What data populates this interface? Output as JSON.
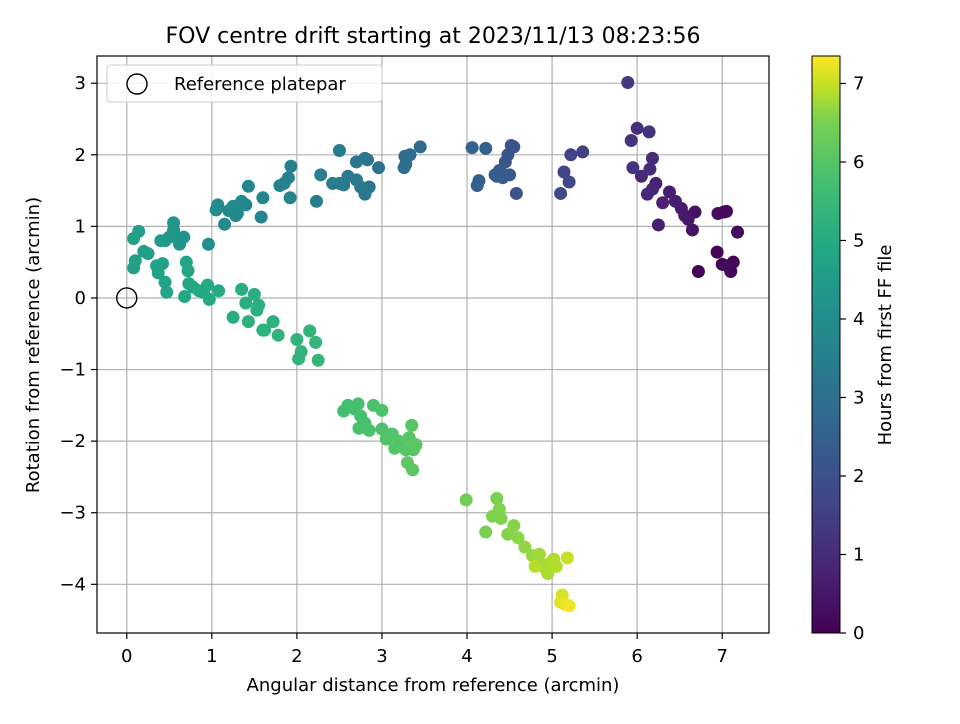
{
  "chart_data": {
    "type": "scatter",
    "title": "FOV centre drift starting at 2023/11/13 08:23:56",
    "xlabel": "Angular distance from reference (arcmin)",
    "ylabel": "Rotation from reference (arcmin)",
    "xlim": [
      -0.35,
      7.55
    ],
    "ylim": [
      -4.68,
      3.38
    ],
    "xticks": [
      0,
      1,
      2,
      3,
      4,
      5,
      6,
      7
    ],
    "yticks": [
      3,
      2,
      1,
      0,
      -1,
      -2,
      -3,
      -4
    ],
    "grid": true,
    "legend": {
      "placement": "top-left",
      "entries": [
        "Reference platepar"
      ]
    },
    "reference_point": {
      "x": 0,
      "y": 0,
      "label": "Reference platepar"
    },
    "colorbar": {
      "label": "Hours from first FF file",
      "colormap": "viridis",
      "range": [
        0,
        7.35
      ],
      "ticks": [
        0,
        1,
        2,
        3,
        4,
        5,
        6,
        7
      ]
    },
    "points": [
      [
        6.72,
        0.37,
        0.05
      ],
      [
        6.94,
        0.64,
        0.08
      ],
      [
        7.0,
        0.47,
        0.12
      ],
      [
        7.1,
        0.37,
        0.1
      ],
      [
        7.13,
        0.5,
        0.15
      ],
      [
        7.06,
        0.45,
        0.18
      ],
      [
        7.18,
        0.92,
        0.22
      ],
      [
        6.95,
        1.18,
        0.28
      ],
      [
        7.02,
        1.2,
        0.25
      ],
      [
        7.05,
        1.21,
        0.2
      ],
      [
        6.68,
        1.2,
        0.38
      ],
      [
        6.65,
        0.95,
        0.42
      ],
      [
        6.6,
        1.1,
        0.5
      ],
      [
        6.56,
        1.15,
        0.55
      ],
      [
        6.52,
        1.25,
        0.6
      ],
      [
        6.45,
        1.35,
        0.65
      ],
      [
        6.38,
        1.48,
        0.7
      ],
      [
        6.3,
        1.33,
        0.75
      ],
      [
        6.22,
        1.6,
        0.78
      ],
      [
        6.18,
        1.52,
        0.85
      ],
      [
        6.12,
        1.45,
        0.9
      ],
      [
        6.25,
        1.02,
        0.72
      ],
      [
        6.05,
        1.7,
        0.95
      ],
      [
        6.15,
        1.8,
        1.0
      ],
      [
        6.18,
        1.95,
        1.05
      ],
      [
        6.0,
        2.37,
        1.1
      ],
      [
        6.14,
        2.32,
        1.15
      ],
      [
        5.93,
        2.2,
        1.2
      ],
      [
        5.95,
        1.82,
        1.25
      ],
      [
        5.89,
        3.01,
        1.35
      ],
      [
        5.36,
        2.04,
        1.55
      ],
      [
        5.22,
        2.0,
        1.6
      ],
      [
        5.14,
        1.76,
        1.7
      ],
      [
        5.2,
        1.62,
        1.75
      ],
      [
        5.1,
        1.46,
        1.8
      ],
      [
        4.58,
        1.46,
        2.05
      ],
      [
        4.55,
        2.11,
        2.1
      ],
      [
        4.52,
        2.13,
        2.12
      ],
      [
        4.48,
        2.0,
        2.15
      ],
      [
        4.45,
        1.9,
        2.2
      ],
      [
        4.5,
        1.72,
        2.25
      ],
      [
        4.42,
        1.68,
        2.28
      ],
      [
        4.38,
        1.78,
        2.3
      ],
      [
        4.4,
        1.75,
        2.32
      ],
      [
        4.35,
        1.7,
        2.35
      ],
      [
        4.33,
        1.72,
        2.38
      ],
      [
        4.12,
        1.57,
        2.45
      ],
      [
        4.14,
        1.64,
        2.48
      ],
      [
        4.22,
        2.09,
        2.55
      ],
      [
        4.06,
        2.1,
        2.6
      ],
      [
        3.45,
        2.11,
        2.8
      ],
      [
        3.33,
        2.0,
        2.85
      ],
      [
        3.27,
        1.98,
        2.88
      ],
      [
        3.28,
        1.87,
        2.9
      ],
      [
        3.26,
        1.82,
        2.95
      ],
      [
        2.96,
        1.82,
        3.05
      ],
      [
        2.83,
        1.93,
        3.1
      ],
      [
        2.8,
        1.95,
        3.12
      ],
      [
        2.7,
        1.9,
        3.15
      ],
      [
        2.85,
        1.55,
        3.2
      ],
      [
        2.8,
        1.45,
        3.22
      ],
      [
        2.75,
        1.55,
        3.25
      ],
      [
        2.7,
        1.65,
        3.28
      ],
      [
        2.6,
        1.7,
        3.3
      ],
      [
        2.55,
        1.58,
        3.32
      ],
      [
        2.5,
        1.6,
        3.35
      ],
      [
        2.42,
        1.6,
        3.38
      ],
      [
        2.5,
        2.06,
        3.4
      ],
      [
        2.28,
        1.72,
        3.45
      ],
      [
        2.23,
        1.35,
        3.5
      ],
      [
        1.93,
        1.84,
        3.55
      ],
      [
        1.9,
        1.68,
        3.58
      ],
      [
        1.85,
        1.6,
        3.6
      ],
      [
        1.8,
        1.57,
        3.62
      ],
      [
        1.92,
        1.4,
        3.65
      ],
      [
        1.6,
        1.4,
        3.7
      ],
      [
        1.58,
        1.13,
        3.72
      ],
      [
        1.43,
        1.56,
        3.75
      ],
      [
        1.4,
        1.3,
        3.78
      ],
      [
        1.35,
        1.35,
        3.8
      ],
      [
        1.3,
        1.18,
        3.82
      ],
      [
        1.28,
        1.15,
        3.85
      ],
      [
        1.25,
        1.28,
        3.88
      ],
      [
        1.2,
        1.22,
        3.9
      ],
      [
        1.15,
        1.03,
        3.92
      ],
      [
        1.07,
        1.3,
        3.95
      ],
      [
        1.05,
        1.23,
        3.98
      ],
      [
        0.96,
        0.75,
        4.05
      ],
      [
        0.67,
        0.85,
        4.2
      ],
      [
        0.62,
        0.75,
        4.25
      ],
      [
        0.6,
        0.83,
        4.28
      ],
      [
        0.55,
        0.95,
        4.3
      ],
      [
        0.55,
        1.05,
        4.32
      ],
      [
        0.5,
        0.85,
        4.35
      ],
      [
        0.45,
        0.8,
        4.4
      ],
      [
        0.4,
        0.8,
        4.42
      ],
      [
        0.2,
        0.65,
        4.55
      ],
      [
        0.25,
        0.62,
        4.58
      ],
      [
        0.14,
        0.93,
        4.6
      ],
      [
        0.08,
        0.83,
        4.62
      ],
      [
        0.1,
        0.52,
        4.65
      ],
      [
        0.08,
        0.42,
        4.68
      ],
      [
        0.35,
        0.45,
        4.7
      ],
      [
        0.37,
        0.35,
        4.72
      ],
      [
        0.42,
        0.48,
        4.74
      ],
      [
        0.45,
        0.22,
        4.76
      ],
      [
        0.47,
        0.08,
        4.78
      ],
      [
        0.7,
        0.5,
        4.8
      ],
      [
        0.72,
        0.38,
        4.82
      ],
      [
        0.73,
        0.2,
        4.84
      ],
      [
        0.68,
        0.02,
        4.86
      ],
      [
        0.78,
        0.15,
        4.88
      ],
      [
        0.85,
        0.1,
        4.9
      ],
      [
        0.9,
        0.08,
        4.92
      ],
      [
        0.95,
        0.18,
        4.94
      ],
      [
        0.97,
        -0.02,
        4.96
      ],
      [
        1.08,
        0.1,
        4.98
      ],
      [
        1.25,
        -0.27,
        5.05
      ],
      [
        1.35,
        0.12,
        5.08
      ],
      [
        1.4,
        -0.07,
        5.1
      ],
      [
        1.5,
        0.05,
        5.12
      ],
      [
        1.55,
        -0.1,
        5.14
      ],
      [
        1.53,
        -0.17,
        5.16
      ],
      [
        1.43,
        -0.33,
        5.18
      ],
      [
        1.6,
        -0.45,
        5.2
      ],
      [
        1.62,
        -0.45,
        5.22
      ],
      [
        1.72,
        -0.33,
        5.24
      ],
      [
        1.78,
        -0.52,
        5.26
      ],
      [
        2.0,
        -0.58,
        5.3
      ],
      [
        2.02,
        -0.85,
        5.32
      ],
      [
        2.05,
        -0.75,
        5.34
      ],
      [
        2.15,
        -0.46,
        5.36
      ],
      [
        2.22,
        -0.62,
        5.38
      ],
      [
        2.25,
        -0.87,
        5.4
      ],
      [
        2.55,
        -1.58,
        5.7
      ],
      [
        2.6,
        -1.5,
        5.72
      ],
      [
        2.68,
        -1.55,
        5.74
      ],
      [
        2.72,
        -1.48,
        5.76
      ],
      [
        2.75,
        -1.65,
        5.78
      ],
      [
        2.8,
        -1.75,
        5.8
      ],
      [
        2.73,
        -1.82,
        5.82
      ],
      [
        2.85,
        -1.85,
        5.84
      ],
      [
        2.9,
        -1.5,
        5.86
      ],
      [
        3.0,
        -1.57,
        5.88
      ],
      [
        3.0,
        -1.83,
        5.9
      ],
      [
        3.05,
        -1.97,
        5.92
      ],
      [
        3.12,
        -1.9,
        5.94
      ],
      [
        3.15,
        -2.1,
        5.96
      ],
      [
        3.2,
        -2.0,
        5.98
      ],
      [
        3.28,
        -2.12,
        6.0
      ],
      [
        3.32,
        -1.95,
        6.02
      ],
      [
        3.35,
        -1.78,
        6.04
      ],
      [
        3.37,
        -2.12,
        6.06
      ],
      [
        3.4,
        -2.05,
        6.08
      ],
      [
        3.36,
        -2.4,
        6.1
      ],
      [
        3.3,
        -2.3,
        6.12
      ],
      [
        3.99,
        -2.82,
        6.4
      ],
      [
        4.22,
        -3.27,
        6.5
      ],
      [
        4.35,
        -2.8,
        6.52
      ],
      [
        4.3,
        -3.05,
        6.54
      ],
      [
        4.4,
        -3.08,
        6.56
      ],
      [
        4.38,
        -2.95,
        6.58
      ],
      [
        4.48,
        -3.3,
        6.6
      ],
      [
        4.55,
        -3.18,
        6.62
      ],
      [
        4.6,
        -3.35,
        6.64
      ],
      [
        4.68,
        -3.48,
        6.66
      ],
      [
        4.77,
        -3.6,
        6.7
      ],
      [
        4.82,
        -3.68,
        6.74
      ],
      [
        4.85,
        -3.58,
        6.76
      ],
      [
        4.88,
        -3.72,
        6.78
      ],
      [
        4.92,
        -3.78,
        6.8
      ],
      [
        4.95,
        -3.85,
        6.82
      ],
      [
        4.98,
        -3.7,
        6.84
      ],
      [
        5.02,
        -3.65,
        6.86
      ],
      [
        5.05,
        -3.75,
        6.88
      ],
      [
        4.8,
        -3.75,
        6.9
      ],
      [
        5.12,
        -4.15,
        7.1
      ],
      [
        5.1,
        -4.25,
        7.15
      ],
      [
        5.15,
        -4.28,
        7.2
      ],
      [
        5.2,
        -4.3,
        7.25
      ],
      [
        5.18,
        -3.63,
        7.0
      ]
    ]
  }
}
